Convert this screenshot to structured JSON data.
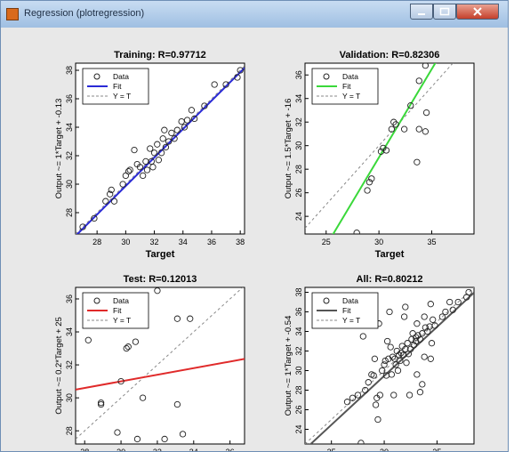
{
  "window": {
    "title": "Regression (plotregression)",
    "minimize_icon": "minimize-icon",
    "maximize_icon": "maximize-icon",
    "close_icon": "close-icon"
  },
  "colors": {
    "training_fit": "#2a2ad6",
    "validation_fit": "#3ad83a",
    "test_fit": "#e02a2a",
    "all_fit": "#555555",
    "ideal_line": "#888888",
    "data_marker": "#222222"
  },
  "chart_data": [
    {
      "type": "scatter",
      "title": "Training: R=0.97712",
      "xlabel": "Target",
      "ylabel": "Output ~= 1*Target + -0.13",
      "xlim": [
        26.5,
        38.3
      ],
      "ylim": [
        26.5,
        38.5
      ],
      "xticks": [
        28,
        30,
        32,
        34,
        36,
        38
      ],
      "yticks": [
        28,
        30,
        32,
        34,
        36,
        38
      ],
      "legend": [
        "Data",
        "Fit",
        "Y = T"
      ],
      "legend_position": "top-left",
      "fit": {
        "slope": 1,
        "intercept": -0.13
      },
      "points": [
        [
          27.0,
          27.0
        ],
        [
          27.8,
          27.6
        ],
        [
          28.6,
          28.8
        ],
        [
          28.9,
          29.3
        ],
        [
          29.2,
          28.8
        ],
        [
          29.0,
          29.6
        ],
        [
          29.8,
          30.0
        ],
        [
          30.0,
          30.6
        ],
        [
          30.2,
          30.9
        ],
        [
          30.3,
          31.0
        ],
        [
          30.6,
          32.4
        ],
        [
          30.8,
          31.4
        ],
        [
          31.0,
          31.2
        ],
        [
          31.2,
          30.6
        ],
        [
          31.4,
          31.6
        ],
        [
          31.5,
          31.0
        ],
        [
          31.7,
          32.5
        ],
        [
          31.8,
          31.6
        ],
        [
          32.0,
          32.2
        ],
        [
          32.2,
          32.8
        ],
        [
          32.3,
          31.7
        ],
        [
          32.5,
          32.2
        ],
        [
          32.6,
          33.2
        ],
        [
          32.8,
          32.6
        ],
        [
          33.0,
          33.0
        ],
        [
          33.2,
          33.6
        ],
        [
          33.4,
          33.2
        ],
        [
          33.6,
          33.8
        ],
        [
          33.9,
          34.4
        ],
        [
          34.1,
          34.0
        ],
        [
          34.3,
          34.5
        ],
        [
          34.6,
          35.2
        ],
        [
          35.5,
          35.5
        ],
        [
          36.2,
          37.0
        ],
        [
          37.0,
          37.0
        ],
        [
          37.8,
          37.5
        ],
        [
          38.0,
          38.0
        ],
        [
          31.9,
          31.2
        ],
        [
          32.7,
          33.8
        ],
        [
          34.8,
          34.6
        ]
      ]
    },
    {
      "type": "scatter",
      "title": "Validation: R=0.82306",
      "xlabel": "Target",
      "ylabel": "Output ~= 1.5*Target + -16",
      "xlim": [
        23,
        39
      ],
      "ylim": [
        22.5,
        37
      ],
      "xticks": [
        25,
        30,
        35
      ],
      "yticks": [
        24,
        26,
        28,
        30,
        32,
        34,
        36
      ],
      "legend": [
        "Data",
        "Fit",
        "Y = T"
      ],
      "legend_position": "top-left",
      "fit": {
        "slope": 1.5,
        "intercept": -16
      },
      "points": [
        [
          27.9,
          22.6
        ],
        [
          28.9,
          26.2
        ],
        [
          29.1,
          26.9
        ],
        [
          29.3,
          27.2
        ],
        [
          30.2,
          29.5
        ],
        [
          30.4,
          29.8
        ],
        [
          30.7,
          29.6
        ],
        [
          31.2,
          31.4
        ],
        [
          31.4,
          32.0
        ],
        [
          31.6,
          31.8
        ],
        [
          32.4,
          31.4
        ],
        [
          33.0,
          33.4
        ],
        [
          33.8,
          35.5
        ],
        [
          33.8,
          31.4
        ],
        [
          34.4,
          31.2
        ],
        [
          33.6,
          28.6
        ],
        [
          34.5,
          32.8
        ],
        [
          34.4,
          36.8
        ]
      ]
    },
    {
      "type": "scatter",
      "title": "Test: R=0.12013",
      "xlabel": "Target",
      "ylabel": "Output ~= 0.2*Target + 25",
      "xlim": [
        27.5,
        36.8
      ],
      "ylim": [
        27.2,
        36.7
      ],
      "xticks": [
        28,
        30,
        32,
        34,
        36
      ],
      "yticks": [
        28,
        30,
        32,
        34,
        36
      ],
      "legend": [
        "Data",
        "Fit",
        "Y = T"
      ],
      "legend_position": "top-left",
      "fit": {
        "slope": 0.2,
        "intercept": 25
      },
      "points": [
        [
          28.2,
          33.5
        ],
        [
          28.9,
          29.7
        ],
        [
          28.9,
          29.6
        ],
        [
          30.0,
          31.0
        ],
        [
          30.3,
          33.0
        ],
        [
          30.4,
          33.1
        ],
        [
          30.8,
          33.4
        ],
        [
          30.9,
          27.5
        ],
        [
          31.2,
          30.0
        ],
        [
          32.0,
          36.5
        ],
        [
          32.4,
          27.5
        ],
        [
          33.1,
          29.6
        ],
        [
          33.1,
          34.8
        ],
        [
          33.4,
          27.8
        ],
        [
          33.8,
          34.8
        ],
        [
          29.8,
          27.9
        ]
      ]
    },
    {
      "type": "scatter",
      "title": "All: R=0.80212",
      "xlabel": "Target",
      "ylabel": "Output ~= 1*Target + -0.54",
      "xlim": [
        22.5,
        38.5
      ],
      "ylim": [
        22.5,
        38.5
      ],
      "xticks": [
        25,
        30,
        35
      ],
      "yticks": [
        24,
        26,
        28,
        30,
        32,
        34,
        36,
        38
      ],
      "legend": [
        "Data",
        "Fit",
        "Y = T"
      ],
      "legend_position": "top-left",
      "fit": {
        "slope": 1,
        "intercept": -0.54
      },
      "points": [
        [
          26.5,
          26.8
        ],
        [
          27.0,
          27.2
        ],
        [
          27.5,
          27.5
        ],
        [
          27.8,
          22.6
        ],
        [
          28.0,
          33.5
        ],
        [
          28.2,
          28.0
        ],
        [
          28.5,
          28.8
        ],
        [
          28.8,
          29.6
        ],
        [
          29.0,
          29.5
        ],
        [
          29.2,
          26.5
        ],
        [
          29.3,
          27.2
        ],
        [
          29.4,
          25.0
        ],
        [
          29.6,
          27.5
        ],
        [
          29.8,
          30.0
        ],
        [
          30.0,
          30.6
        ],
        [
          30.1,
          31.0
        ],
        [
          30.2,
          29.5
        ],
        [
          30.3,
          33.0
        ],
        [
          30.4,
          31.2
        ],
        [
          30.6,
          32.4
        ],
        [
          30.7,
          29.6
        ],
        [
          30.8,
          31.4
        ],
        [
          30.9,
          27.5
        ],
        [
          31.0,
          31.2
        ],
        [
          31.1,
          30.6
        ],
        [
          31.2,
          32.0
        ],
        [
          31.3,
          30.0
        ],
        [
          31.4,
          31.6
        ],
        [
          31.5,
          31.0
        ],
        [
          31.6,
          31.8
        ],
        [
          31.7,
          32.5
        ],
        [
          31.8,
          31.6
        ],
        [
          32.0,
          32.2
        ],
        [
          32.0,
          36.5
        ],
        [
          32.1,
          30.8
        ],
        [
          32.2,
          32.8
        ],
        [
          32.3,
          31.7
        ],
        [
          32.4,
          27.5
        ],
        [
          32.5,
          32.2
        ],
        [
          32.6,
          33.2
        ],
        [
          32.7,
          33.8
        ],
        [
          32.8,
          32.6
        ],
        [
          33.0,
          33.0
        ],
        [
          33.0,
          33.4
        ],
        [
          33.1,
          29.6
        ],
        [
          33.1,
          34.8
        ],
        [
          33.2,
          33.6
        ],
        [
          33.4,
          27.8
        ],
        [
          33.4,
          33.2
        ],
        [
          33.6,
          33.8
        ],
        [
          33.6,
          28.6
        ],
        [
          33.8,
          35.5
        ],
        [
          33.8,
          31.4
        ],
        [
          33.9,
          34.4
        ],
        [
          34.1,
          34.0
        ],
        [
          34.3,
          34.5
        ],
        [
          34.4,
          31.2
        ],
        [
          34.4,
          36.8
        ],
        [
          34.5,
          32.8
        ],
        [
          34.6,
          35.2
        ],
        [
          34.8,
          34.6
        ],
        [
          35.5,
          35.5
        ],
        [
          36.2,
          37.0
        ],
        [
          37.0,
          37.0
        ],
        [
          37.8,
          37.5
        ],
        [
          38.0,
          38.0
        ],
        [
          36.5,
          36.2
        ],
        [
          35.8,
          36.0
        ],
        [
          29.5,
          34.8
        ],
        [
          30.5,
          36.0
        ],
        [
          31.9,
          35.5
        ],
        [
          29.1,
          31.2
        ]
      ]
    }
  ]
}
